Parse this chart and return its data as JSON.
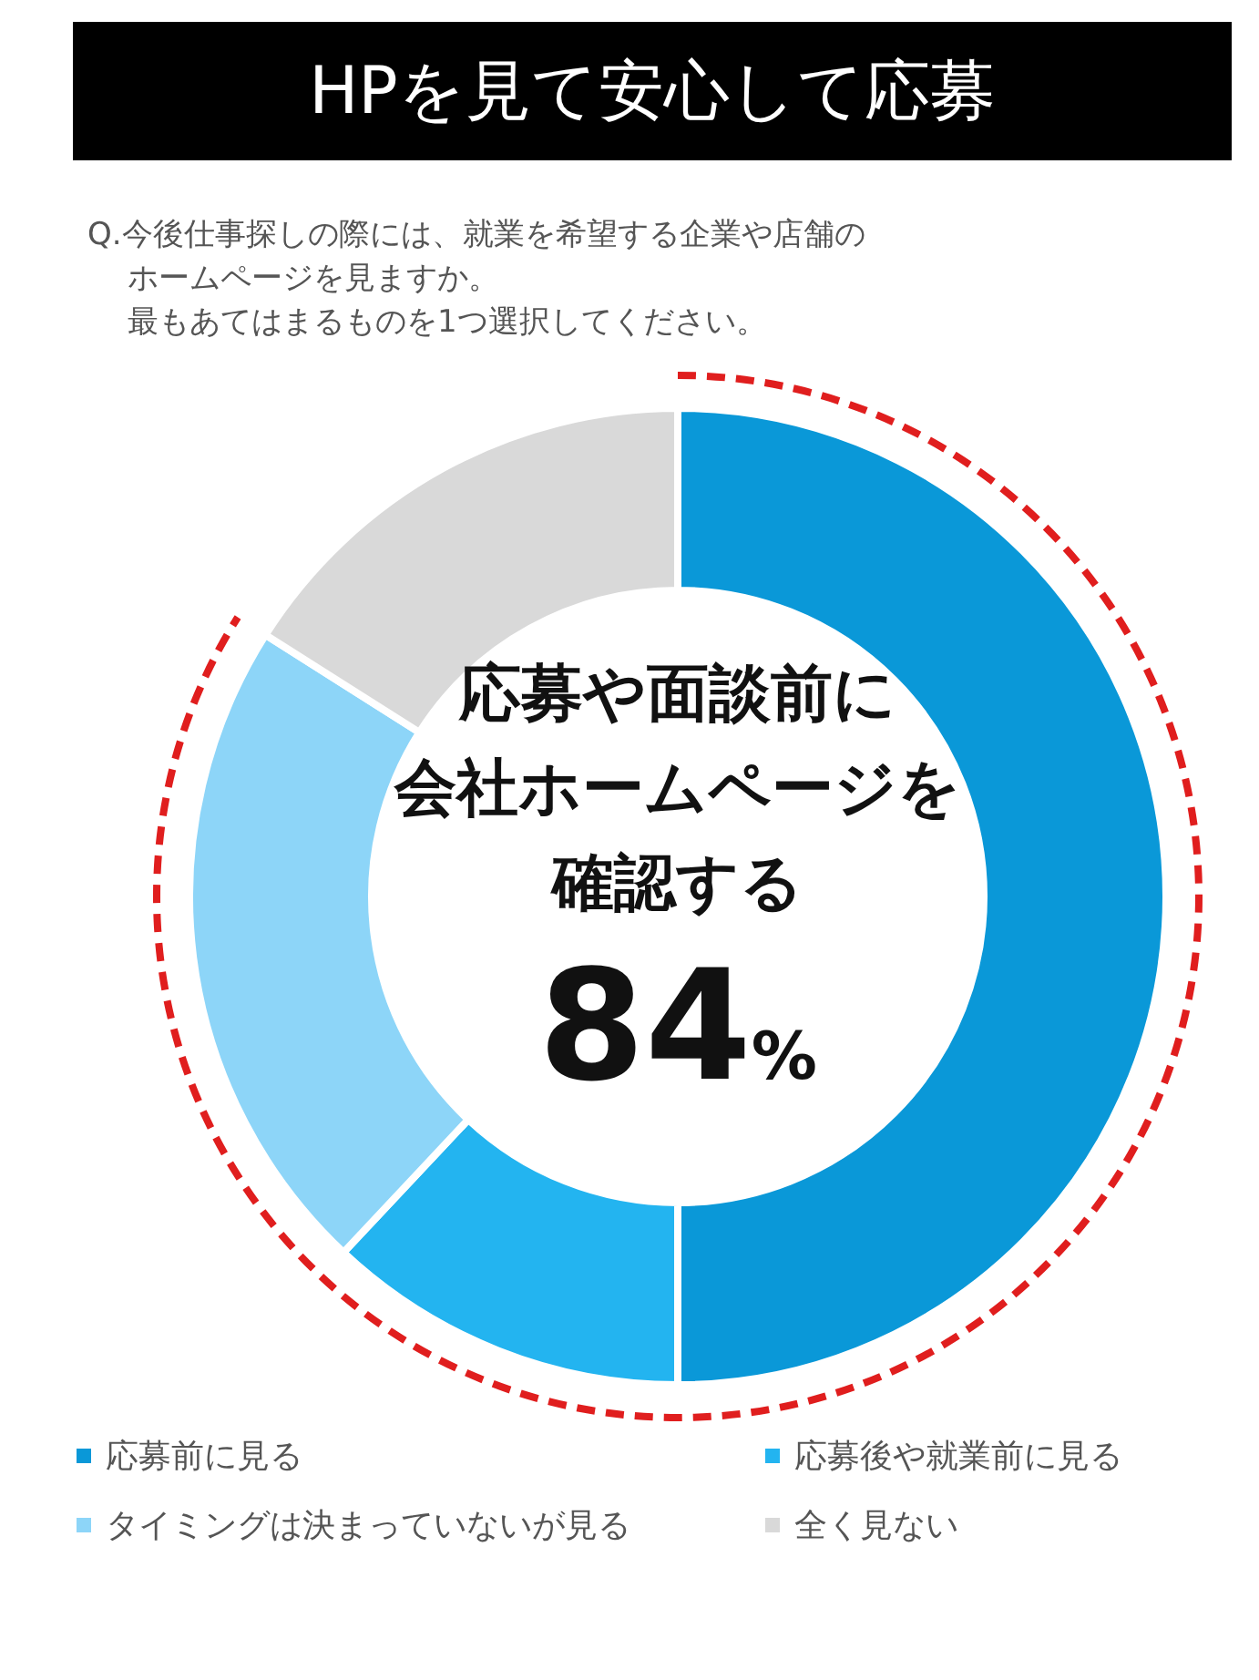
{
  "chart_data": {
    "type": "donut",
    "title": "HPを見て安心して応募",
    "subtitle": "Q.今後仕事探しの際には、就業を希望する企業や店舗のホームページを見ますか。",
    "categories": [
      "応募前に見る",
      "応募後や就業前に見る",
      "タイミングは決まっていないが見る",
      "全く見ない"
    ],
    "values": [
      50,
      12,
      22,
      16
    ],
    "colors": [
      "#0a98d8",
      "#23b4f0",
      "#8dd5f8",
      "#d9d9d9"
    ],
    "annotations": [
      "最もあてはまるものを1つ選択してください。",
      "応募や面談前に",
      "会社ホームページを",
      "確認する",
      "84%"
    ],
    "legend": "bottom"
  }
}
